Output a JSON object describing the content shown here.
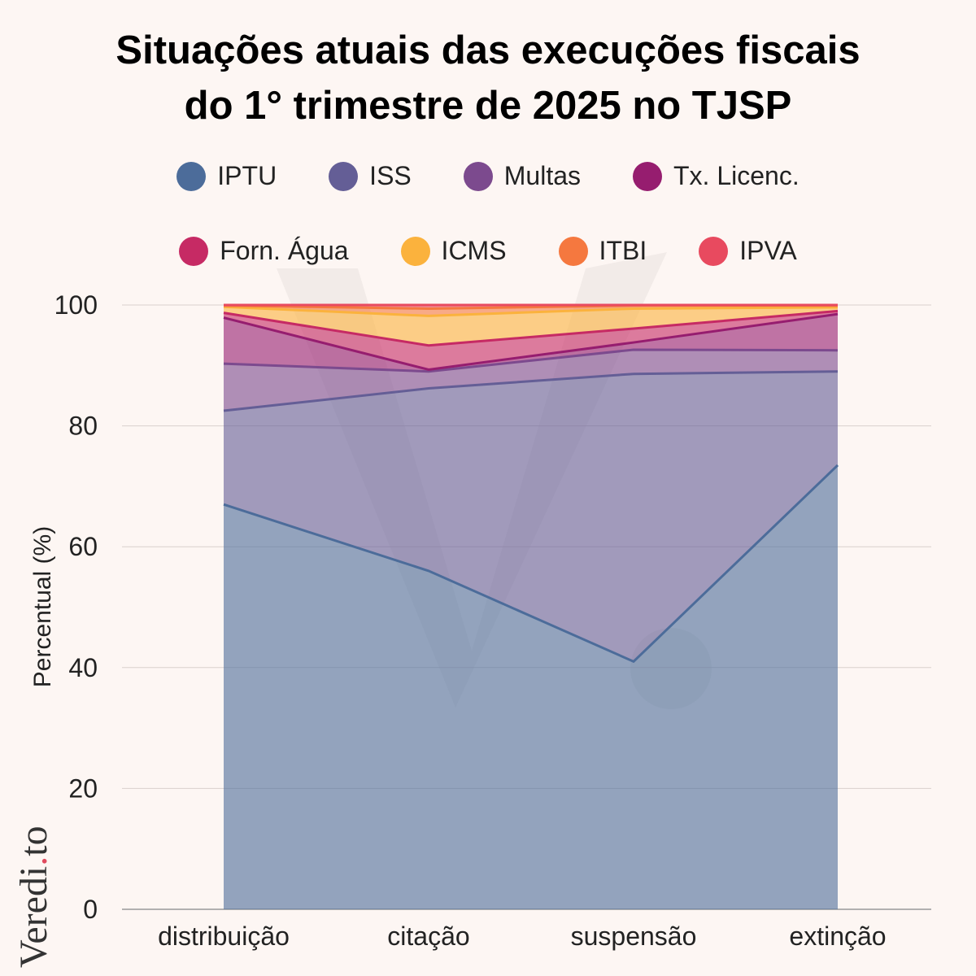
{
  "title_line1": "Situações atuais das execuções fiscais",
  "title_line2": "do 1° trimestre de 2025 no TJSP",
  "brand": {
    "part1": "Veredi",
    "dot": ".",
    "part2": "to"
  },
  "chart_data": {
    "type": "area",
    "stacked": true,
    "categories": [
      "distribuição",
      "citação",
      "suspensão",
      "extinção"
    ],
    "ylabel": "Percentual (%)",
    "ylim": [
      0,
      100
    ],
    "yticks": [
      0,
      20,
      40,
      60,
      80,
      100
    ],
    "grid": true,
    "legend_position": "top",
    "series": [
      {
        "name": "IPTU",
        "color": "#4c6c9a",
        "values": [
          67,
          56,
          41,
          73.5
        ]
      },
      {
        "name": "ISS",
        "color": "#645e96",
        "values": [
          15.5,
          30.2,
          47.6,
          15.5
        ]
      },
      {
        "name": "Multas",
        "color": "#7c4a8e",
        "values": [
          7.8,
          2.8,
          4,
          3.5
        ]
      },
      {
        "name": "Tx. Licenc.",
        "color": "#961d6f",
        "values": [
          7.6,
          0.3,
          1.2,
          6
        ]
      },
      {
        "name": "Forn. Água",
        "color": "#c62a64",
        "values": [
          0.8,
          4,
          2.3,
          0.5
        ]
      },
      {
        "name": "ICMS",
        "color": "#fbb23d",
        "values": [
          1,
          4.9,
          3.3,
          0.6
        ]
      },
      {
        "name": "ITBI",
        "color": "#f5783f",
        "values": [
          0.2,
          1.2,
          0.5,
          0.3
        ]
      },
      {
        "name": "IPVA",
        "color": "#e84a5f",
        "values": [
          0.1,
          0.6,
          0.1,
          0.1
        ]
      }
    ]
  }
}
